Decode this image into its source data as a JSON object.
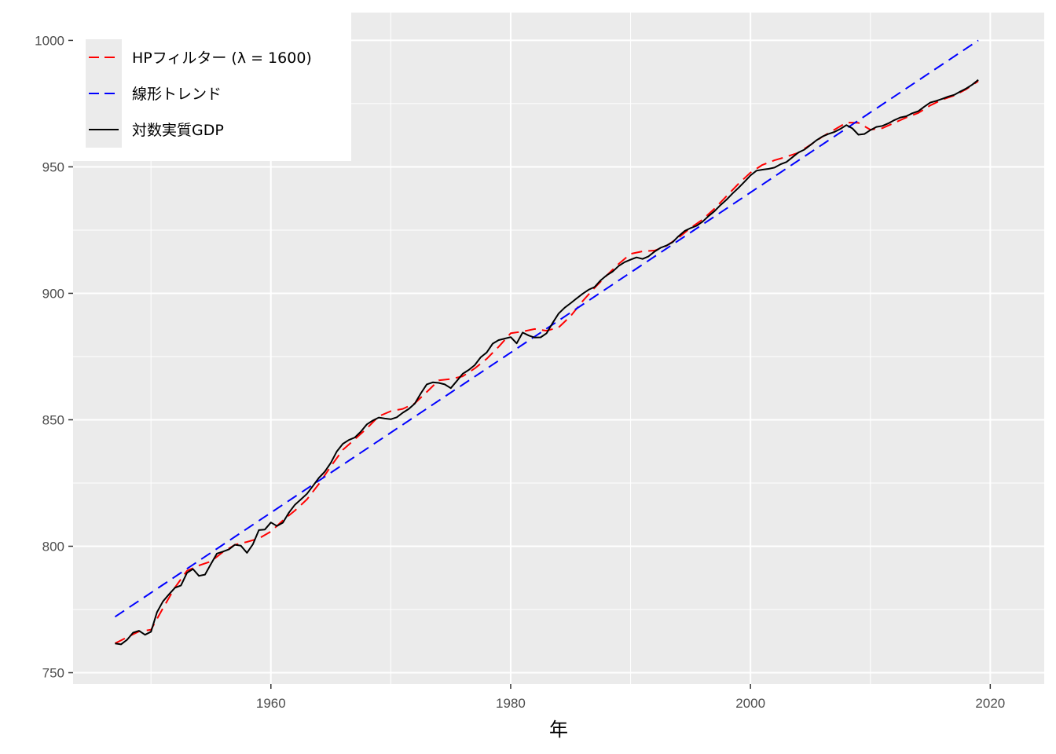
{
  "chart_data": {
    "type": "line",
    "title": "",
    "xlabel": "年",
    "ylabel": "",
    "xlim": [
      1943.5,
      2024.5
    ],
    "ylim": [
      745.5,
      1011
    ],
    "x_ticks": [
      1960,
      1980,
      2000,
      2020
    ],
    "x_tick_labels": [
      "1960",
      "1980",
      "2000",
      "2020"
    ],
    "y_ticks": [
      750,
      800,
      850,
      900,
      950,
      1000
    ],
    "y_tick_labels": [
      "750",
      "800",
      "850",
      "900",
      "950",
      "1000"
    ],
    "grid": true,
    "legend_position": "top-left",
    "series": [
      {
        "name": "HPフィルター (λ = 1600)",
        "color": "#ff0000",
        "dash": "dashed",
        "points": [
          [
            1947.0,
            761.6
          ],
          [
            1948.0,
            764.0
          ],
          [
            1949.0,
            766.3
          ],
          [
            1950.0,
            767.0
          ],
          [
            1951.0,
            775.5
          ],
          [
            1952.0,
            783.7
          ],
          [
            1953.0,
            790.3
          ],
          [
            1954.0,
            792.4
          ],
          [
            1955.0,
            794.0
          ],
          [
            1956.0,
            797.7
          ],
          [
            1957.0,
            800.6
          ],
          [
            1958.0,
            801.7
          ],
          [
            1959.0,
            803.1
          ],
          [
            1960.0,
            805.8
          ],
          [
            1961.0,
            810.2
          ],
          [
            1962.0,
            814.1
          ],
          [
            1963.0,
            818.5
          ],
          [
            1964.0,
            824.6
          ],
          [
            1965.0,
            831.6
          ],
          [
            1966.0,
            838.1
          ],
          [
            1967.0,
            842.3
          ],
          [
            1968.0,
            846.6
          ],
          [
            1969.0,
            851.4
          ],
          [
            1970.0,
            853.4
          ],
          [
            1971.0,
            854.3
          ],
          [
            1972.0,
            856.5
          ],
          [
            1973.0,
            861.0
          ],
          [
            1974.0,
            865.6
          ],
          [
            1975.0,
            866.1
          ],
          [
            1976.0,
            867.2
          ],
          [
            1977.0,
            870.3
          ],
          [
            1978.0,
            874.1
          ],
          [
            1979.0,
            878.9
          ],
          [
            1980.0,
            884.2
          ],
          [
            1981.0,
            884.9
          ],
          [
            1982.0,
            885.9
          ],
          [
            1983.0,
            885.2
          ],
          [
            1984.0,
            886.5
          ],
          [
            1985.0,
            891.0
          ],
          [
            1986.0,
            896.9
          ],
          [
            1987.0,
            902.2
          ],
          [
            1988.0,
            907.0
          ],
          [
            1989.0,
            911.6
          ],
          [
            1990.0,
            915.6
          ],
          [
            1991.0,
            916.6
          ],
          [
            1992.0,
            916.9
          ],
          [
            1993.0,
            918.8
          ],
          [
            1994.0,
            922.0
          ],
          [
            1995.0,
            925.9
          ],
          [
            1996.0,
            929.1
          ],
          [
            1997.0,
            933.5
          ],
          [
            1998.0,
            938.4
          ],
          [
            1999.0,
            943.3
          ],
          [
            2000.0,
            947.7
          ],
          [
            2001.0,
            950.8
          ],
          [
            2002.0,
            952.6
          ],
          [
            2003.0,
            954.0
          ],
          [
            2004.0,
            955.6
          ],
          [
            2005.0,
            958.7
          ],
          [
            2006.0,
            961.9
          ],
          [
            2007.0,
            964.7
          ],
          [
            2008.0,
            967.5
          ],
          [
            2009.0,
            967.4
          ],
          [
            2010.0,
            964.7
          ],
          [
            2011.0,
            965.3
          ],
          [
            2012.0,
            967.4
          ],
          [
            2013.0,
            969.5
          ],
          [
            2014.0,
            971.3
          ],
          [
            2015.0,
            974.3
          ],
          [
            2016.0,
            976.6
          ],
          [
            2017.0,
            978.2
          ],
          [
            2018.0,
            980.7
          ],
          [
            2019.0,
            983.9
          ]
        ]
      },
      {
        "name": "線形トレンド",
        "color": "#0000ff",
        "dash": "dashed",
        "points": [
          [
            1947.0,
            772.1
          ],
          [
            2019.0,
            1000.0
          ]
        ]
      },
      {
        "name": "対数実質GDP",
        "color": "#000000",
        "dash": "solid",
        "points": [
          [
            1947.0,
            761.6
          ],
          [
            1947.5,
            761.2
          ],
          [
            1948.0,
            763.0
          ],
          [
            1948.5,
            765.8
          ],
          [
            1949.0,
            766.6
          ],
          [
            1949.5,
            765.0
          ],
          [
            1950.0,
            766.2
          ],
          [
            1950.5,
            773.9
          ],
          [
            1951.0,
            778.2
          ],
          [
            1951.5,
            781.0
          ],
          [
            1952.0,
            783.6
          ],
          [
            1952.5,
            784.5
          ],
          [
            1953.0,
            789.5
          ],
          [
            1953.5,
            791.0
          ],
          [
            1954.0,
            788.3
          ],
          [
            1954.5,
            788.8
          ],
          [
            1955.0,
            793.0
          ],
          [
            1955.5,
            797.1
          ],
          [
            1956.0,
            797.9
          ],
          [
            1956.5,
            798.8
          ],
          [
            1957.0,
            800.6
          ],
          [
            1957.5,
            800.2
          ],
          [
            1958.0,
            797.4
          ],
          [
            1958.5,
            800.8
          ],
          [
            1959.0,
            806.4
          ],
          [
            1959.5,
            806.6
          ],
          [
            1960.0,
            809.4
          ],
          [
            1960.5,
            808.0
          ],
          [
            1961.0,
            809.3
          ],
          [
            1961.5,
            813.3
          ],
          [
            1962.0,
            816.4
          ],
          [
            1962.5,
            818.5
          ],
          [
            1963.0,
            820.7
          ],
          [
            1963.5,
            823.8
          ],
          [
            1964.0,
            827.0
          ],
          [
            1964.5,
            829.5
          ],
          [
            1965.0,
            833.0
          ],
          [
            1965.5,
            837.5
          ],
          [
            1966.0,
            840.5
          ],
          [
            1966.5,
            842.0
          ],
          [
            1967.0,
            843.0
          ],
          [
            1967.5,
            845.3
          ],
          [
            1968.0,
            848.2
          ],
          [
            1968.5,
            849.7
          ],
          [
            1969.0,
            850.9
          ],
          [
            1969.5,
            850.5
          ],
          [
            1970.0,
            850.2
          ],
          [
            1970.5,
            851.0
          ],
          [
            1971.0,
            852.8
          ],
          [
            1971.5,
            854.3
          ],
          [
            1972.0,
            856.4
          ],
          [
            1972.5,
            860.4
          ],
          [
            1973.0,
            864.0
          ],
          [
            1973.5,
            864.8
          ],
          [
            1974.0,
            864.6
          ],
          [
            1974.5,
            864.0
          ],
          [
            1975.0,
            862.5
          ],
          [
            1975.5,
            865.3
          ],
          [
            1976.0,
            868.2
          ],
          [
            1976.5,
            869.7
          ],
          [
            1977.0,
            871.6
          ],
          [
            1977.5,
            874.7
          ],
          [
            1978.0,
            876.6
          ],
          [
            1978.5,
            880.1
          ],
          [
            1979.0,
            881.5
          ],
          [
            1979.5,
            882.1
          ],
          [
            1980.0,
            882.7
          ],
          [
            1980.5,
            880.2
          ],
          [
            1981.0,
            884.5
          ],
          [
            1981.5,
            883.3
          ],
          [
            1982.0,
            882.5
          ],
          [
            1982.5,
            882.6
          ],
          [
            1983.0,
            884.2
          ],
          [
            1983.5,
            888.3
          ],
          [
            1984.0,
            892.0
          ],
          [
            1984.5,
            894.3
          ],
          [
            1985.0,
            896.1
          ],
          [
            1985.5,
            898.0
          ],
          [
            1986.0,
            899.8
          ],
          [
            1986.5,
            901.4
          ],
          [
            1987.0,
            902.5
          ],
          [
            1987.5,
            905.1
          ],
          [
            1988.0,
            907.1
          ],
          [
            1988.5,
            908.6
          ],
          [
            1989.0,
            910.8
          ],
          [
            1989.5,
            912.3
          ],
          [
            1990.0,
            913.3
          ],
          [
            1990.5,
            914.2
          ],
          [
            1991.0,
            913.6
          ],
          [
            1991.5,
            914.6
          ],
          [
            1992.0,
            916.5
          ],
          [
            1992.5,
            918.0
          ],
          [
            1993.0,
            918.9
          ],
          [
            1993.5,
            920.2
          ],
          [
            1994.0,
            922.6
          ],
          [
            1994.5,
            924.6
          ],
          [
            1995.0,
            925.8
          ],
          [
            1995.5,
            926.7
          ],
          [
            1996.0,
            928.3
          ],
          [
            1996.5,
            930.5
          ],
          [
            1997.0,
            932.5
          ],
          [
            1997.5,
            934.9
          ],
          [
            1998.0,
            937.0
          ],
          [
            1998.5,
            939.5
          ],
          [
            1999.0,
            941.7
          ],
          [
            1999.5,
            944.1
          ],
          [
            2000.0,
            946.6
          ],
          [
            2000.5,
            948.5
          ],
          [
            2001.0,
            948.9
          ],
          [
            2001.5,
            949.2
          ],
          [
            2002.0,
            949.7
          ],
          [
            2002.5,
            951.0
          ],
          [
            2003.0,
            951.9
          ],
          [
            2003.5,
            953.8
          ],
          [
            2004.0,
            955.7
          ],
          [
            2004.5,
            956.8
          ],
          [
            2005.0,
            958.6
          ],
          [
            2005.5,
            960.5
          ],
          [
            2006.0,
            962.0
          ],
          [
            2006.5,
            963.0
          ],
          [
            2007.0,
            963.8
          ],
          [
            2007.5,
            965.0
          ],
          [
            2008.0,
            966.5
          ],
          [
            2008.5,
            965.2
          ],
          [
            2009.0,
            962.7
          ],
          [
            2009.5,
            963.0
          ],
          [
            2010.0,
            964.5
          ],
          [
            2010.5,
            965.8
          ],
          [
            2011.0,
            966.2
          ],
          [
            2011.5,
            967.2
          ],
          [
            2012.0,
            968.5
          ],
          [
            2012.5,
            969.5
          ],
          [
            2013.0,
            970.0
          ],
          [
            2013.5,
            971.2
          ],
          [
            2014.0,
            972.0
          ],
          [
            2014.5,
            973.8
          ],
          [
            2015.0,
            975.4
          ],
          [
            2015.5,
            976.1
          ],
          [
            2016.0,
            976.9
          ],
          [
            2016.5,
            977.8
          ],
          [
            2017.0,
            978.5
          ],
          [
            2017.5,
            979.8
          ],
          [
            2018.0,
            981.0
          ],
          [
            2018.5,
            982.5
          ],
          [
            2019.0,
            984.4
          ]
        ]
      }
    ],
    "colors": {
      "panel_background": "#ebebeb",
      "gridline": "#ffffff",
      "axis_text": "#4d4d4d",
      "tick_mark": "#333333"
    }
  }
}
